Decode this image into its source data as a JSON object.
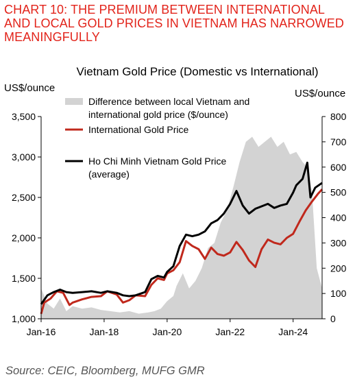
{
  "heading": {
    "line1": "CHART 10: THE PREMIUM BETWEEN INTERNATIONAL",
    "line2": "AND LOCAL GOLD PRICES IN VIETNAM HAS NARROWED",
    "line3": "MEANINGFULLY"
  },
  "source": "Source: CEIC, Bloomberg, MUFG GMR",
  "chart_data": {
    "type": "line",
    "title": "Vietnam Gold Price (Domestic vs International)",
    "ylabel_left": "US$/ounce",
    "ylabel_right": "US$/ounce",
    "ylim_left": [
      1000,
      3500
    ],
    "ylim_right": [
      0,
      800
    ],
    "yticks_left": [
      "1,000",
      "1,500",
      "2,000",
      "2,500",
      "3,000",
      "3,500"
    ],
    "yticks_right": [
      "0",
      "100",
      "200",
      "300",
      "400",
      "500",
      "600",
      "700",
      "800"
    ],
    "xticks": [
      "Jan-16",
      "Jan-18",
      "Jan-20",
      "Jan-22",
      "Jan-24"
    ],
    "x_unit": "year",
    "xlim": [
      2016.0,
      2024.92
    ],
    "grid": false,
    "legend_position": "top-left",
    "colors": {
      "difference": "#cccccc",
      "international": "#c0281c",
      "hcmc": "#000000"
    },
    "series": [
      {
        "name": "Difference between local Vietnam and international gold price ($/ounce)",
        "axis": "right",
        "kind": "area",
        "x": [
          2016.0,
          2016.2,
          2016.4,
          2016.6,
          2016.8,
          2017.0,
          2017.3,
          2017.6,
          2017.9,
          2018.2,
          2018.5,
          2018.8,
          2019.1,
          2019.4,
          2019.6,
          2019.8,
          2020.0,
          2020.2,
          2020.3,
          2020.5,
          2020.7,
          2020.9,
          2021.1,
          2021.3,
          2021.5,
          2021.7,
          2021.9,
          2022.1,
          2022.3,
          2022.5,
          2022.7,
          2022.9,
          2023.1,
          2023.3,
          2023.5,
          2023.7,
          2023.9,
          2024.1,
          2024.3,
          2024.45,
          2024.6,
          2024.75,
          2024.92
        ],
        "values": [
          120,
          60,
          40,
          80,
          30,
          50,
          40,
          45,
          35,
          30,
          25,
          30,
          20,
          25,
          30,
          40,
          70,
          90,
          130,
          180,
          120,
          150,
          200,
          280,
          300,
          380,
          430,
          520,
          620,
          700,
          720,
          680,
          700,
          720,
          680,
          700,
          650,
          660,
          620,
          600,
          500,
          200,
          120
        ]
      },
      {
        "name": "International Gold Price",
        "axis": "left",
        "kind": "line",
        "x": [
          2016.0,
          2016.1,
          2016.3,
          2016.5,
          2016.7,
          2016.9,
          2017.0,
          2017.3,
          2017.6,
          2017.9,
          2018.1,
          2018.4,
          2018.6,
          2018.8,
          2019.0,
          2019.3,
          2019.5,
          2019.7,
          2019.9,
          2020.0,
          2020.2,
          2020.4,
          2020.6,
          2020.8,
          2021.0,
          2021.2,
          2021.4,
          2021.6,
          2021.8,
          2022.0,
          2022.2,
          2022.4,
          2022.6,
          2022.8,
          2023.0,
          2023.2,
          2023.4,
          2023.6,
          2023.8,
          2024.0,
          2024.2,
          2024.4,
          2024.6,
          2024.8,
          2024.92
        ],
        "values": [
          1060,
          1200,
          1250,
          1340,
          1320,
          1170,
          1200,
          1240,
          1270,
          1280,
          1340,
          1300,
          1200,
          1230,
          1290,
          1280,
          1420,
          1500,
          1480,
          1560,
          1600,
          1700,
          1960,
          1900,
          1860,
          1740,
          1880,
          1800,
          1780,
          1820,
          1950,
          1850,
          1720,
          1640,
          1860,
          1980,
          1940,
          1920,
          2000,
          2050,
          2200,
          2340,
          2450,
          2550,
          2600
        ]
      },
      {
        "name": "Ho Chi Minh Vietnam Gold Price (average)",
        "axis": "left",
        "kind": "line",
        "x": [
          2016.0,
          2016.2,
          2016.4,
          2016.6,
          2016.8,
          2017.0,
          2017.3,
          2017.6,
          2017.9,
          2018.1,
          2018.4,
          2018.6,
          2018.8,
          2019.0,
          2019.3,
          2019.5,
          2019.7,
          2019.9,
          2020.0,
          2020.2,
          2020.4,
          2020.6,
          2020.8,
          2021.0,
          2021.2,
          2021.4,
          2021.6,
          2021.8,
          2022.0,
          2022.2,
          2022.4,
          2022.6,
          2022.8,
          2023.0,
          2023.2,
          2023.4,
          2023.6,
          2023.8,
          2024.0,
          2024.1,
          2024.3,
          2024.45,
          2024.55,
          2024.7,
          2024.92
        ],
        "values": [
          1180,
          1290,
          1330,
          1360,
          1330,
          1320,
          1330,
          1340,
          1320,
          1340,
          1320,
          1290,
          1280,
          1290,
          1330,
          1490,
          1530,
          1510,
          1580,
          1650,
          1900,
          2040,
          2020,
          2040,
          2080,
          2180,
          2220,
          2300,
          2420,
          2580,
          2400,
          2300,
          2360,
          2390,
          2420,
          2370,
          2400,
          2420,
          2560,
          2650,
          2730,
          2930,
          2500,
          2620,
          2680
        ]
      }
    ]
  }
}
